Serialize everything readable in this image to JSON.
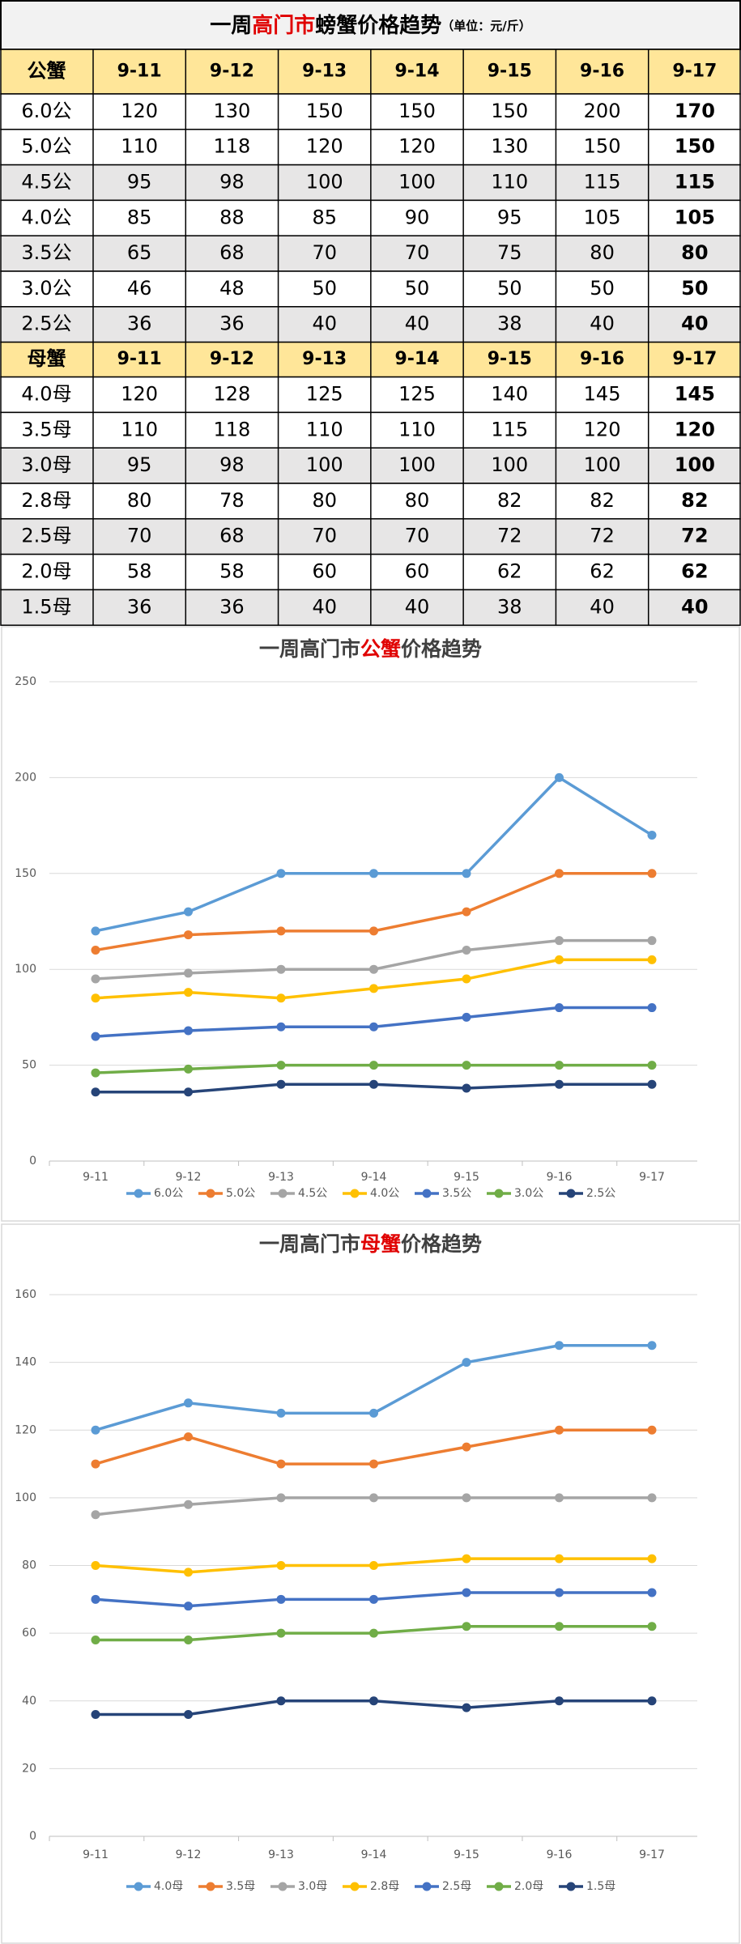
{
  "table": {
    "title": [
      "一周",
      "高门市",
      "螃蟹价格趋势"
    ],
    "unit": "（单位：元/斤）",
    "sections": [
      {
        "header": "公蟹",
        "dates": [
          "9-11",
          "9-12",
          "9-13",
          "9-14",
          "9-15",
          "9-16",
          "9-17"
        ],
        "rows": [
          {
            "label": "6.0公",
            "values": [
              120,
              130,
              150,
              150,
              150,
              200,
              170
            ]
          },
          {
            "label": "5.0公",
            "values": [
              110,
              118,
              120,
              120,
              130,
              150,
              150
            ]
          },
          {
            "label": "4.5公",
            "values": [
              95,
              98,
              100,
              100,
              110,
              115,
              115
            ]
          },
          {
            "label": "4.0公",
            "values": [
              85,
              88,
              85,
              90,
              95,
              105,
              105
            ]
          },
          {
            "label": "3.5公",
            "values": [
              65,
              68,
              70,
              70,
              75,
              80,
              80
            ]
          },
          {
            "label": "3.0公",
            "values": [
              46,
              48,
              50,
              50,
              50,
              50,
              50
            ]
          },
          {
            "label": "2.5公",
            "values": [
              36,
              36,
              40,
              40,
              38,
              40,
              40
            ]
          }
        ]
      },
      {
        "header": "母蟹",
        "dates": [
          "9-11",
          "9-12",
          "9-13",
          "9-14",
          "9-15",
          "9-16",
          "9-17"
        ],
        "rows": [
          {
            "label": "4.0母",
            "values": [
              120,
              128,
              125,
              125,
              140,
              145,
              145
            ]
          },
          {
            "label": "3.5母",
            "values": [
              110,
              118,
              110,
              110,
              115,
              120,
              120
            ]
          },
          {
            "label": "3.0母",
            "values": [
              95,
              98,
              100,
              100,
              100,
              100,
              100
            ]
          },
          {
            "label": "2.8母",
            "values": [
              80,
              78,
              80,
              80,
              82,
              82,
              82
            ]
          },
          {
            "label": "2.5母",
            "values": [
              70,
              68,
              70,
              70,
              72,
              72,
              72
            ]
          },
          {
            "label": "2.0母",
            "values": [
              58,
              58,
              60,
              60,
              62,
              62,
              62
            ]
          },
          {
            "label": "1.5母",
            "values": [
              36,
              36,
              40,
              40,
              38,
              40,
              40
            ]
          }
        ]
      }
    ]
  },
  "chart_data": [
    {
      "type": "line",
      "title": [
        "一周高门市",
        "公蟹",
        "价格趋势"
      ],
      "categories": [
        "9-11",
        "9-12",
        "9-13",
        "9-14",
        "9-15",
        "9-16",
        "9-17"
      ],
      "ylim": [
        0,
        250
      ],
      "yticks": [
        0,
        50,
        100,
        150,
        200,
        250
      ],
      "grid": true,
      "legend": "bottom",
      "series": [
        {
          "name": "6.0公",
          "color": "#5b9bd5",
          "values": [
            120,
            130,
            150,
            150,
            150,
            200,
            170
          ]
        },
        {
          "name": "5.0公",
          "color": "#ed7d31",
          "values": [
            110,
            118,
            120,
            120,
            130,
            150,
            150
          ]
        },
        {
          "name": "4.5公",
          "color": "#a5a5a5",
          "values": [
            95,
            98,
            100,
            100,
            110,
            115,
            115
          ]
        },
        {
          "name": "4.0公",
          "color": "#ffc000",
          "values": [
            85,
            88,
            85,
            90,
            95,
            105,
            105
          ]
        },
        {
          "name": "3.5公",
          "color": "#4472c4",
          "values": [
            65,
            68,
            70,
            70,
            75,
            80,
            80
          ]
        },
        {
          "name": "3.0公",
          "color": "#70ad47",
          "values": [
            46,
            48,
            50,
            50,
            50,
            50,
            50
          ]
        },
        {
          "name": "2.5公",
          "color": "#264478",
          "values": [
            36,
            36,
            40,
            40,
            38,
            40,
            40
          ]
        }
      ]
    },
    {
      "type": "line",
      "title": [
        "一周高门市",
        "母蟹",
        "价格趋势"
      ],
      "categories": [
        "9-11",
        "9-12",
        "9-13",
        "9-14",
        "9-15",
        "9-16",
        "9-17"
      ],
      "ylim": [
        0,
        160
      ],
      "yticks": [
        0,
        20,
        40,
        60,
        80,
        100,
        120,
        140,
        160
      ],
      "grid": true,
      "legend": "bottom",
      "series": [
        {
          "name": "4.0母",
          "color": "#5b9bd5",
          "values": [
            120,
            128,
            125,
            125,
            140,
            145,
            145
          ]
        },
        {
          "name": "3.5母",
          "color": "#ed7d31",
          "values": [
            110,
            118,
            110,
            110,
            115,
            120,
            120
          ]
        },
        {
          "name": "3.0母",
          "color": "#a5a5a5",
          "values": [
            95,
            98,
            100,
            100,
            100,
            100,
            100
          ]
        },
        {
          "name": "2.8母",
          "color": "#ffc000",
          "values": [
            80,
            78,
            80,
            80,
            82,
            82,
            82
          ]
        },
        {
          "name": "2.5母",
          "color": "#4472c4",
          "values": [
            70,
            68,
            70,
            70,
            72,
            72,
            72
          ]
        },
        {
          "name": "2.0母",
          "color": "#70ad47",
          "values": [
            58,
            58,
            60,
            60,
            62,
            62,
            62
          ]
        },
        {
          "name": "1.5母",
          "color": "#264478",
          "values": [
            36,
            36,
            40,
            40,
            38,
            40,
            40
          ]
        }
      ]
    }
  ]
}
